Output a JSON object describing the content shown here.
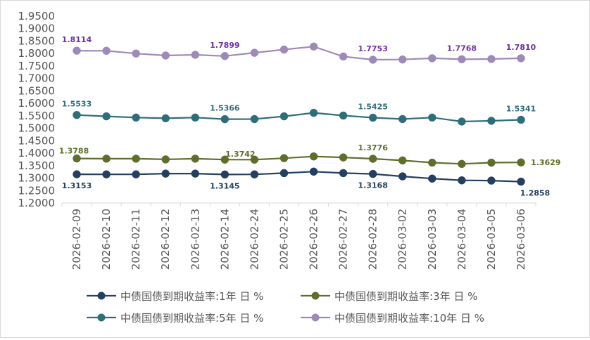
{
  "chart_data": {
    "type": "line",
    "title": "",
    "xlabel": "",
    "ylabel": "",
    "ylim": [
      1.2,
      1.95
    ],
    "ytick_step": 0.05,
    "grid": false,
    "legend_position": "bottom",
    "categories": [
      "2026-02-09",
      "2026-02-10",
      "2026-02-11",
      "2026-02-12",
      "2026-02-13",
      "2026-02-14",
      "2026-02-24",
      "2026-02-25",
      "2026-02-26",
      "2026-02-27",
      "2026-02-28",
      "2026-03-02",
      "2026-03-03",
      "2026-03-04",
      "2026-03-05",
      "2026-03-06"
    ],
    "series": [
      {
        "name": "中债国债到期收益率:1年 日 %",
        "color": "#243f60",
        "values": [
          1.3153,
          1.315,
          1.315,
          1.318,
          1.318,
          1.3145,
          1.315,
          1.32,
          1.326,
          1.32,
          1.3168,
          1.307,
          1.298,
          1.291,
          1.29,
          1.2858
        ],
        "labels": [
          {
            "index": 0,
            "text": "1.3153",
            "pos": "below"
          },
          {
            "index": 5,
            "text": "1.3145",
            "pos": "below"
          },
          {
            "index": 10,
            "text": "1.3168",
            "pos": "below"
          },
          {
            "index": 15,
            "text": "1.2858",
            "pos": "below-right"
          }
        ]
      },
      {
        "name": "中债国债到期收益率:3年 日 %",
        "color": "#5f6e2a",
        "values": [
          1.3788,
          1.378,
          1.378,
          1.375,
          1.378,
          1.3742,
          1.374,
          1.38,
          1.387,
          1.383,
          1.3776,
          1.371,
          1.362,
          1.357,
          1.362,
          1.3629
        ],
        "labels": [
          {
            "index": 0,
            "text": "1.3788",
            "pos": "above-left"
          },
          {
            "index": 5,
            "text": "1.3742",
            "pos": "above-right"
          },
          {
            "index": 10,
            "text": "1.3776",
            "pos": "above"
          },
          {
            "index": 15,
            "text": "1.3629",
            "pos": "right"
          }
        ]
      },
      {
        "name": "中债国债到期收益率:5年 日 %",
        "color": "#2e6e7a",
        "values": [
          1.5533,
          1.548,
          1.543,
          1.54,
          1.543,
          1.5366,
          1.537,
          1.548,
          1.562,
          1.551,
          1.5425,
          1.537,
          1.543,
          1.527,
          1.53,
          1.5341
        ],
        "labels": [
          {
            "index": 0,
            "text": "1.5533",
            "pos": "above"
          },
          {
            "index": 5,
            "text": "1.5366",
            "pos": "above"
          },
          {
            "index": 10,
            "text": "1.5425",
            "pos": "above"
          },
          {
            "index": 15,
            "text": "1.5341",
            "pos": "above"
          }
        ]
      },
      {
        "name": "中债国债到期收益率:10年 日 %",
        "color": "#9e8ab8",
        "values": [
          1.8114,
          1.811,
          1.8,
          1.792,
          1.795,
          1.7899,
          1.803,
          1.816,
          1.828,
          1.788,
          1.7753,
          1.776,
          1.781,
          1.7768,
          1.778,
          1.781
        ],
        "labels": [
          {
            "index": 0,
            "text": "1.8114",
            "pos": "above"
          },
          {
            "index": 5,
            "text": "1.7899",
            "pos": "above"
          },
          {
            "index": 10,
            "text": "1.7753",
            "pos": "above"
          },
          {
            "index": 13,
            "text": "1.7768",
            "pos": "above"
          },
          {
            "index": 15,
            "text": "1.7810",
            "pos": "above"
          }
        ],
        "label_color": "#7030a0"
      }
    ]
  }
}
